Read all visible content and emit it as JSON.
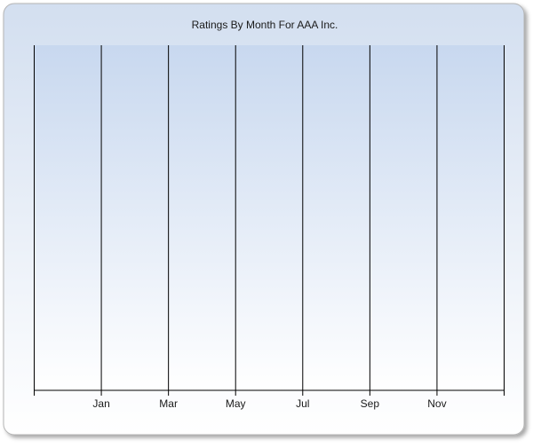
{
  "chart_data": {
    "type": "line",
    "title": "Ratings By Month For AAA  Inc.",
    "categories": [
      null,
      "Jan",
      "Mar",
      "May",
      "Jul",
      "Sep",
      "Nov",
      null
    ],
    "series": [],
    "grid": true
  }
}
